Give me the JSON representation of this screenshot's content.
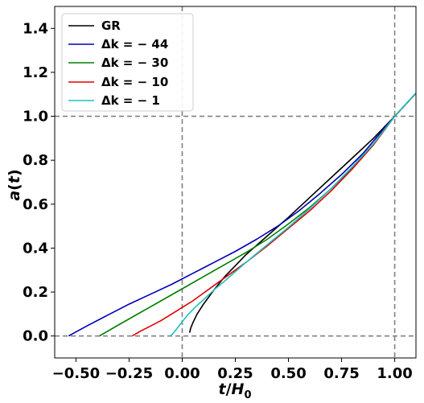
{
  "chart_data": {
    "type": "line",
    "xlabel": "t/H0",
    "ylabel": "a(t)",
    "xlim": [
      -0.6,
      1.1
    ],
    "ylim": [
      -0.1,
      1.5
    ],
    "xticks": [
      -0.5,
      -0.25,
      0.0,
      0.25,
      0.5,
      0.75,
      1.0
    ],
    "xtick_labels": [
      "−0.50",
      "−0.25",
      "0.00",
      "0.25",
      "0.50",
      "0.75",
      "1.00"
    ],
    "yticks": [
      0.0,
      0.2,
      0.4,
      0.6,
      0.8,
      1.0,
      1.2,
      1.4
    ],
    "ytick_labels": [
      "0.0",
      "0.2",
      "0.4",
      "0.6",
      "0.8",
      "1.0",
      "1.2",
      "1.4"
    ],
    "reference_lines": {
      "vertical": [
        0.0,
        1.0
      ],
      "horizontal": [
        0.0,
        1.0
      ],
      "style": "dashed",
      "color": "#808080"
    },
    "legend_position": "upper-left",
    "series": [
      {
        "name": "GR",
        "color": "#000000",
        "x": [
          0.035,
          0.04,
          0.05,
          0.07,
          0.1,
          0.15,
          0.2,
          0.25,
          0.3,
          0.4,
          0.5,
          0.6,
          0.7,
          0.8,
          0.9,
          1.0,
          1.1
        ],
        "y": [
          0.015,
          0.035,
          0.06,
          0.1,
          0.145,
          0.21,
          0.27,
          0.32,
          0.37,
          0.455,
          0.54,
          0.63,
          0.72,
          0.81,
          0.9,
          1.0,
          1.105
        ]
      },
      {
        "name": "Δk = −44",
        "color": "#0000b4",
        "x": [
          -0.535,
          -0.45,
          -0.35,
          -0.25,
          -0.15,
          -0.05,
          0.05,
          0.15,
          0.25,
          0.35,
          0.45,
          0.55,
          0.65,
          0.75,
          0.85,
          0.95,
          1.0,
          1.1
        ],
        "y": [
          0.0,
          0.045,
          0.095,
          0.145,
          0.19,
          0.235,
          0.285,
          0.335,
          0.385,
          0.44,
          0.5,
          0.57,
          0.65,
          0.735,
          0.83,
          0.945,
          1.0,
          1.105
        ]
      },
      {
        "name": "Δk = −30",
        "color": "#008000",
        "x": [
          -0.39,
          -0.3,
          -0.2,
          -0.1,
          0.0,
          0.1,
          0.2,
          0.3,
          0.4,
          0.5,
          0.6,
          0.7,
          0.8,
          0.9,
          1.0,
          1.1
        ],
        "y": [
          0.0,
          0.05,
          0.105,
          0.16,
          0.215,
          0.27,
          0.325,
          0.38,
          0.44,
          0.51,
          0.585,
          0.67,
          0.765,
          0.875,
          1.0,
          1.105
        ]
      },
      {
        "name": "Δk = −10",
        "color": "#e00000",
        "x": [
          -0.235,
          -0.2,
          -0.15,
          -0.1,
          -0.05,
          0.0,
          0.05,
          0.1,
          0.2,
          0.3,
          0.4,
          0.5,
          0.6,
          0.7,
          0.8,
          0.9,
          1.0,
          1.1
        ],
        "y": [
          0.0,
          0.02,
          0.045,
          0.07,
          0.1,
          0.13,
          0.16,
          0.195,
          0.265,
          0.335,
          0.41,
          0.49,
          0.57,
          0.66,
          0.76,
          0.87,
          1.0,
          1.105
        ]
      },
      {
        "name": "Δk = −1",
        "color": "#20c0c0",
        "x": [
          -0.055,
          -0.04,
          -0.02,
          0.0,
          0.03,
          0.06,
          0.1,
          0.15,
          0.2,
          0.3,
          0.4,
          0.5,
          0.6,
          0.7,
          0.8,
          0.9,
          1.0,
          1.1
        ],
        "y": [
          0.0,
          0.015,
          0.04,
          0.065,
          0.1,
          0.13,
          0.165,
          0.21,
          0.25,
          0.335,
          0.415,
          0.495,
          0.58,
          0.67,
          0.77,
          0.875,
          1.0,
          1.105
        ]
      }
    ]
  },
  "legend_labels": {
    "gr": "GR",
    "dk44": "Δk = − 44",
    "dk30": "Δk = − 30",
    "dk10": "Δk = − 10",
    "dk1": "Δk = − 1"
  }
}
